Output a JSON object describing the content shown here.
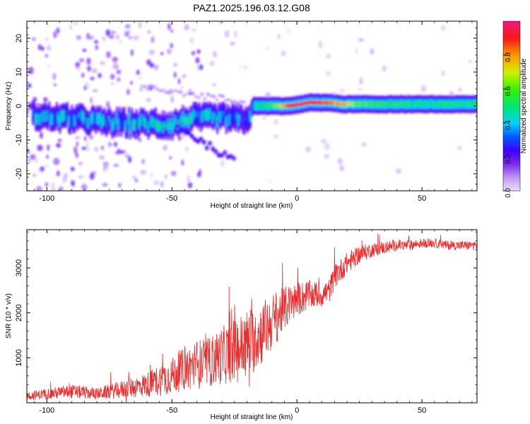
{
  "title": "PAZ1.2025.196.03.12.G08",
  "chart_data": [
    {
      "type": "heatmap",
      "xlabel": "Height of straight line (km)",
      "ylabel": "Frequency (Hz)",
      "xlim": [
        -108,
        72
      ],
      "ylim": [
        -25,
        25
      ],
      "xticks": [
        -100,
        -50,
        0,
        50
      ],
      "yticks": [
        -20,
        -10,
        0,
        10,
        20
      ],
      "colorbar": {
        "label": "Normalized spectral amplitude",
        "range": [
          0,
          1
        ],
        "ticks": [
          "0.0",
          "0.2",
          "0.4",
          "0.6",
          "0.8"
        ],
        "tick_values": [
          0.0,
          0.2,
          0.4,
          0.6,
          0.8
        ]
      },
      "ridge": [
        {
          "x": -105,
          "f": -3,
          "amp": 0.35
        },
        {
          "x": -95,
          "f": -3.5,
          "amp": 0.42
        },
        {
          "x": -85,
          "f": -4,
          "amp": 0.38
        },
        {
          "x": -75,
          "f": -5,
          "amp": 0.36
        },
        {
          "x": -65,
          "f": -5,
          "amp": 0.4
        },
        {
          "x": -55,
          "f": -5.5,
          "amp": 0.42
        },
        {
          "x": -50,
          "f": -5.5,
          "amp": 0.4
        },
        {
          "x": -45,
          "f": -4,
          "amp": 0.45
        },
        {
          "x": -40,
          "f": -3.5,
          "amp": 0.42
        },
        {
          "x": -35,
          "f": -3.5,
          "amp": 0.4
        },
        {
          "x": -30,
          "f": -3.5,
          "amp": 0.38
        },
        {
          "x": -25,
          "f": -4,
          "amp": 0.36
        },
        {
          "x": -20,
          "f": -4,
          "amp": 0.34
        },
        {
          "x": -18,
          "f": 0,
          "amp": 0.4
        },
        {
          "x": -12,
          "f": 0,
          "amp": 0.55
        },
        {
          "x": -8,
          "f": 0,
          "amp": 0.65
        },
        {
          "x": -3,
          "f": 0,
          "amp": 0.92
        },
        {
          "x": 5,
          "f": 1,
          "amp": 0.95
        },
        {
          "x": 12,
          "f": 1,
          "amp": 0.85
        },
        {
          "x": 18,
          "f": 0.5,
          "amp": 0.75
        },
        {
          "x": 25,
          "f": 0.5,
          "amp": 0.6
        },
        {
          "x": 35,
          "f": 0.5,
          "amp": 0.55
        },
        {
          "x": 45,
          "f": 0.5,
          "amp": 0.5
        },
        {
          "x": 55,
          "f": 0.5,
          "amp": 0.48
        },
        {
          "x": 65,
          "f": 0.5,
          "amp": 0.5
        },
        {
          "x": 72,
          "f": 0.5,
          "amp": 0.5
        }
      ]
    },
    {
      "type": "line",
      "xlabel": "Height of straight line (km)",
      "ylabel": "SNR (10 * v/v)",
      "xlim": [
        -108,
        72
      ],
      "ylim": [
        0,
        3850
      ],
      "xticks": [
        -100,
        -50,
        0,
        50
      ],
      "yticks": [
        1000,
        2000,
        3000
      ],
      "series": [
        {
          "color": "#ee2a2a",
          "x": [
            -108,
            -100,
            -90,
            -80,
            -70,
            -60,
            -55,
            -50,
            -45,
            -40,
            -35,
            -30,
            -25,
            -20,
            -15,
            -10,
            -5,
            0,
            5,
            10,
            13,
            15,
            20,
            25,
            30,
            35,
            40,
            45,
            50,
            55,
            60,
            65,
            72
          ],
          "y": [
            150,
            200,
            250,
            200,
            300,
            400,
            500,
            600,
            750,
            850,
            900,
            1050,
            1150,
            1300,
            1500,
            1800,
            2100,
            2300,
            2400,
            2400,
            2500,
            2800,
            3100,
            3300,
            3400,
            3450,
            3500,
            3500,
            3550,
            3550,
            3500,
            3500,
            3500
          ],
          "noise": [
            120,
            150,
            200,
            160,
            250,
            350,
            450,
            500,
            600,
            700,
            700,
            800,
            900,
            1000,
            900,
            800,
            600,
            500,
            400,
            350,
            350,
            350,
            300,
            250,
            200,
            180,
            150,
            150,
            130,
            130,
            130,
            130,
            130
          ]
        }
      ]
    }
  ]
}
